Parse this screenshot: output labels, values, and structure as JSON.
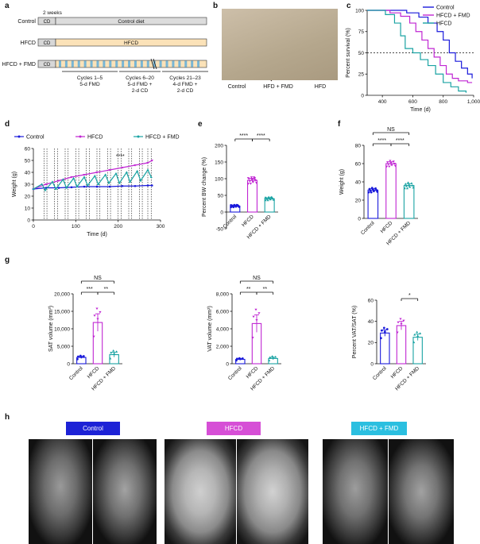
{
  "panels": [
    "a",
    "b",
    "c",
    "d",
    "e",
    "f",
    "g",
    "h"
  ],
  "colors": {
    "control": "#1a1adb",
    "hfcd": "#c026d3",
    "fmd": "#1aa3a3",
    "banner_control": "#1d22d6",
    "banner_hfcd": "#d64fd6",
    "banner_fmd": "#2bbfe0"
  },
  "panel_a": {
    "weeks_label": "2 weeks",
    "rows": [
      {
        "label": "Control",
        "cd": "CD",
        "bar": "Control diet"
      },
      {
        "label": "HFCD",
        "cd": "CD",
        "bar": "HFCD"
      },
      {
        "label": "HFCD + FMD",
        "cd": "CD",
        "bar": ""
      }
    ],
    "cycle_groups": [
      {
        "line1": "Cycles 1–5",
        "line2": "5-d FMD",
        "line3": ""
      },
      {
        "line1": "Cycles 6–20",
        "line2": "5-d FMD +",
        "line3": "2-d CD"
      },
      {
        "line1": "Cycles 21–23",
        "line2": "4-d FMD +",
        "line3": "2-d CD"
      }
    ]
  },
  "panel_b": {
    "labels": [
      "Control",
      "HFD + FMD",
      "HFD"
    ]
  },
  "panel_c": {
    "chart_data": {
      "type": "line",
      "xlabel": "Time (d)",
      "ylabel": "Percent survival (%)",
      "xlim": [
        300,
        1000
      ],
      "ylim": [
        0,
        100
      ],
      "xticks": [
        "400",
        "600",
        "800",
        "1,000"
      ],
      "yticks": [
        "0",
        "25",
        "50",
        "75",
        "100"
      ],
      "legend": [
        "Control",
        "HFCD + FMD",
        "HFCD"
      ],
      "series": [
        {
          "name": "Control",
          "x": [
            300,
            480,
            560,
            640,
            700,
            760,
            800,
            840,
            880,
            920,
            960,
            990
          ],
          "y": [
            100,
            100,
            97,
            92,
            85,
            75,
            65,
            50,
            40,
            32,
            25,
            20
          ]
        },
        {
          "name": "HFCD + FMD",
          "x": [
            300,
            450,
            520,
            580,
            620,
            660,
            700,
            740,
            780,
            820,
            860,
            900,
            960,
            990
          ],
          "y": [
            100,
            97,
            93,
            85,
            75,
            65,
            55,
            45,
            35,
            25,
            20,
            17,
            15,
            15
          ]
        },
        {
          "name": "HFCD",
          "x": [
            300,
            420,
            480,
            520,
            550,
            600,
            650,
            700,
            750,
            800,
            850,
            900,
            950
          ],
          "y": [
            100,
            95,
            85,
            70,
            55,
            50,
            42,
            35,
            25,
            15,
            10,
            5,
            3
          ]
        }
      ],
      "reference_line": 50
    }
  },
  "panel_d": {
    "chart_data": {
      "type": "line",
      "xlabel": "Time (d)",
      "ylabel": "Weight (g)",
      "xlim": [
        0,
        300
      ],
      "ylim": [
        0,
        60
      ],
      "xticks": [
        "0",
        "100",
        "200",
        "300"
      ],
      "yticks": [
        "0",
        "10",
        "20",
        "30",
        "40",
        "50",
        "60"
      ],
      "legend": [
        "Control",
        "HFCD",
        "HFCD + FMD"
      ],
      "significance": "****",
      "series": [
        {
          "name": "Control",
          "x": [
            0,
            30,
            60,
            90,
            120,
            150,
            180,
            210,
            240,
            270,
            280
          ],
          "y": [
            26,
            27,
            27,
            27.5,
            28,
            28,
            28,
            28.5,
            28.5,
            29,
            29
          ]
        },
        {
          "name": "HFCD",
          "x": [
            0,
            30,
            60,
            90,
            120,
            150,
            180,
            210,
            240,
            270,
            280
          ],
          "y": [
            26,
            30,
            33,
            36,
            38,
            40,
            42,
            44,
            46,
            48,
            50
          ]
        },
        {
          "name": "HFCD + FMD",
          "x": [
            0,
            20,
            28,
            45,
            53,
            70,
            78,
            95,
            103,
            120,
            128,
            145,
            153,
            170,
            178,
            195,
            203,
            220,
            228,
            245,
            253,
            270,
            278
          ],
          "y": [
            26,
            30,
            25,
            32,
            26,
            34,
            27,
            35,
            28,
            36,
            29,
            37,
            30,
            38,
            31,
            39,
            31,
            40,
            32,
            41,
            33,
            42,
            36
          ]
        }
      ],
      "fmd_cycles_x": [
        25,
        32,
        50,
        57,
        75,
        82,
        100,
        107,
        125,
        132,
        150,
        157,
        175,
        182,
        200,
        207,
        225,
        232,
        250,
        257,
        270,
        278
      ]
    }
  },
  "panel_e": {
    "chart_data": {
      "type": "bar",
      "ylabel": "Percent BW change (%)",
      "categories": [
        "Control",
        "HFCD",
        "HFCD + FMD"
      ],
      "values": [
        18,
        95,
        40
      ],
      "errors": [
        2,
        6,
        3
      ],
      "ylim": [
        -50,
        200
      ],
      "yticks": [
        "-50",
        "0",
        "50",
        "100",
        "150",
        "200"
      ],
      "significance": [
        {
          "from": 0,
          "to": 1,
          "label": "****"
        },
        {
          "from": 1,
          "to": 2,
          "label": "****"
        }
      ]
    }
  },
  "panel_f": {
    "chart_data": {
      "type": "bar",
      "ylabel": "Weight (g)",
      "categories": [
        "Control",
        "HFCD",
        "HFCD + FMD"
      ],
      "values": [
        31,
        60,
        36
      ],
      "errors": [
        1.5,
        2,
        2
      ],
      "ylim": [
        0,
        80
      ],
      "yticks": [
        "0",
        "20",
        "40",
        "60",
        "80"
      ],
      "significance": [
        {
          "from": 0,
          "to": 1,
          "label": "****"
        },
        {
          "from": 1,
          "to": 2,
          "label": "****"
        },
        {
          "from": 0,
          "to": 2,
          "label": "NS"
        }
      ]
    }
  },
  "panel_g1": {
    "chart_data": {
      "type": "bar",
      "ylabel": "SAT volume (mm³)",
      "categories": [
        "Control",
        "HFCD",
        "HFCD + FMD"
      ],
      "values": [
        1800,
        11800,
        2600
      ],
      "errors": [
        300,
        2500,
        700
      ],
      "ylim": [
        0,
        20000
      ],
      "yticks": [
        "0",
        "5,000",
        "10,000",
        "15,000",
        "20,000"
      ],
      "significance": [
        {
          "from": 0,
          "to": 1,
          "label": "***"
        },
        {
          "from": 1,
          "to": 2,
          "label": "**"
        },
        {
          "from": 0,
          "to": 2,
          "label": "NS"
        }
      ]
    }
  },
  "panel_g2": {
    "chart_data": {
      "type": "bar",
      "ylabel": "VAT volume (mm³)",
      "categories": [
        "Control",
        "HFCD",
        "HFCD + FMD"
      ],
      "values": [
        500,
        4600,
        600
      ],
      "errors": [
        80,
        1000,
        150
      ],
      "ylim": [
        0,
        8000
      ],
      "yticks": [
        "0",
        "2,000",
        "4,000",
        "6,000",
        "8,000"
      ],
      "significance": [
        {
          "from": 0,
          "to": 1,
          "label": "**"
        },
        {
          "from": 1,
          "to": 2,
          "label": "**"
        },
        {
          "from": 0,
          "to": 2,
          "label": "NS"
        }
      ]
    }
  },
  "panel_g3": {
    "chart_data": {
      "type": "bar",
      "ylabel": "Percent VAT/SAT (%)",
      "categories": [
        "Control",
        "HFCD",
        "HFCD + FMD"
      ],
      "values": [
        29,
        36,
        25
      ],
      "errors": [
        3,
        4,
        3
      ],
      "ylim": [
        0,
        60
      ],
      "yticks": [
        "0",
        "20",
        "40",
        "60"
      ],
      "significance": [
        {
          "from": 1,
          "to": 2,
          "label": "*"
        }
      ]
    }
  },
  "panel_h": {
    "banners": [
      "Control",
      "HFCD",
      "HFCD + FMD"
    ]
  }
}
